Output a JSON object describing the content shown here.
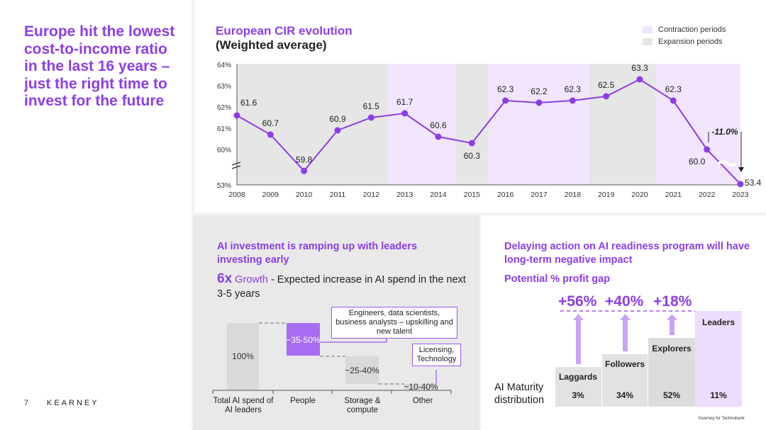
{
  "headline": "Europe hit the lowest cost-to-income ratio in the last 16 years – just the right time to invest for the future",
  "page_number": "7",
  "brand": "KEARNEY",
  "source": "Kearney for Technobank",
  "cir": {
    "title": "European CIR evolution",
    "subtitle": "(Weighted average)",
    "legend": {
      "contraction": "Contraction periods",
      "expansion": "Expansion periods"
    },
    "change_label": "-11.0%"
  },
  "colors": {
    "accent": "#8b3ee6",
    "contraction": "#f1e6fd",
    "expansion": "#e6e6e6",
    "bar_grey": "#d9d9d9"
  },
  "chart_data": [
    {
      "type": "line",
      "title": "European CIR evolution",
      "subtitle": "(Weighted average)",
      "x": [
        "2008",
        "2009",
        "2010",
        "2011",
        "2012",
        "2013",
        "2014",
        "2015",
        "2016",
        "2017",
        "2018",
        "2019",
        "2020",
        "2021",
        "2022",
        "2023"
      ],
      "series": [
        {
          "values": [
            61.6,
            60.7,
            59.8,
            60.9,
            61.5,
            61.7,
            60.6,
            60.3,
            62.3,
            62.2,
            62.3,
            62.5,
            63.3,
            62.3,
            60.0,
            53.4
          ]
        }
      ],
      "value_labels": [
        "61.6",
        "60.7",
        "59.8",
        "60.9",
        "61.5",
        "61.7",
        "60.6",
        "60.3",
        "62.3",
        "62.2",
        "62.3",
        "62.5",
        "63.3",
        "62.3",
        "60.0",
        "53.4"
      ],
      "y_ticks": [
        "53%",
        "60%",
        "61%",
        "62%",
        "63%",
        "64%"
      ],
      "ylim": [
        53,
        64
      ],
      "axis_break": true,
      "periods": [
        {
          "kind": "expansion",
          "from": "2008",
          "to": "2012"
        },
        {
          "kind": "contraction",
          "from": "2013",
          "to": "2014"
        },
        {
          "kind": "expansion",
          "from": "2015",
          "to": "2015"
        },
        {
          "kind": "contraction",
          "from": "2016",
          "to": "2018"
        },
        {
          "kind": "expansion",
          "from": "2019",
          "to": "2020"
        },
        {
          "kind": "contraction",
          "from": "2021",
          "to": "2023"
        }
      ],
      "annotation": "-11.0%"
    },
    {
      "type": "bar",
      "title": "AI investment is ramping up with leaders investing early",
      "categories": [
        "Total AI spend of AI leaders",
        "People",
        "Storage & compute",
        "Other"
      ],
      "values": [
        100,
        42.5,
        32.5,
        25
      ],
      "value_labels": [
        "100%",
        "~35-50%",
        "~25-40%",
        "~10-40%"
      ]
    },
    {
      "type": "bar",
      "title": "Delaying action on AI readiness program will have long-term negative impact",
      "subtitle": "Potential % profit gap",
      "categories": [
        "Laggards",
        "Followers",
        "Explorers",
        "Leaders"
      ],
      "values": [
        3,
        34,
        52,
        11
      ],
      "value_labels": [
        "3%",
        "34%",
        "52%",
        "11%"
      ],
      "gaps": [
        "+56%",
        "+40%",
        "+18%"
      ],
      "xlabel": "AI Maturity distribution"
    }
  ],
  "ai_invest": {
    "title": "AI investment is ramping up with leaders investing early",
    "growth_big": "6x",
    "growth_word": "Growth",
    "growth_text": " - Expected increase in AI spend in the next 3-5 years",
    "callout_people": "Engineers, data scientists, business analysts – upskilling and new talent",
    "callout_other": "Licensing, Technology",
    "cats": [
      "Total AI spend of AI leaders",
      "People",
      "Storage & compute",
      "Other"
    ]
  },
  "profit_gap": {
    "title": "Delaying action on AI readiness program will have long-term negative impact",
    "subtitle": "Potential % profit gap",
    "maturity_label": "AI Maturity distribution",
    "gaps": [
      "+56%",
      "+40%",
      "+18%"
    ],
    "tiers": [
      "Laggards",
      "Followers",
      "Explorers",
      "Leaders"
    ],
    "shares": [
      "3%",
      "34%",
      "52%",
      "11%"
    ]
  }
}
